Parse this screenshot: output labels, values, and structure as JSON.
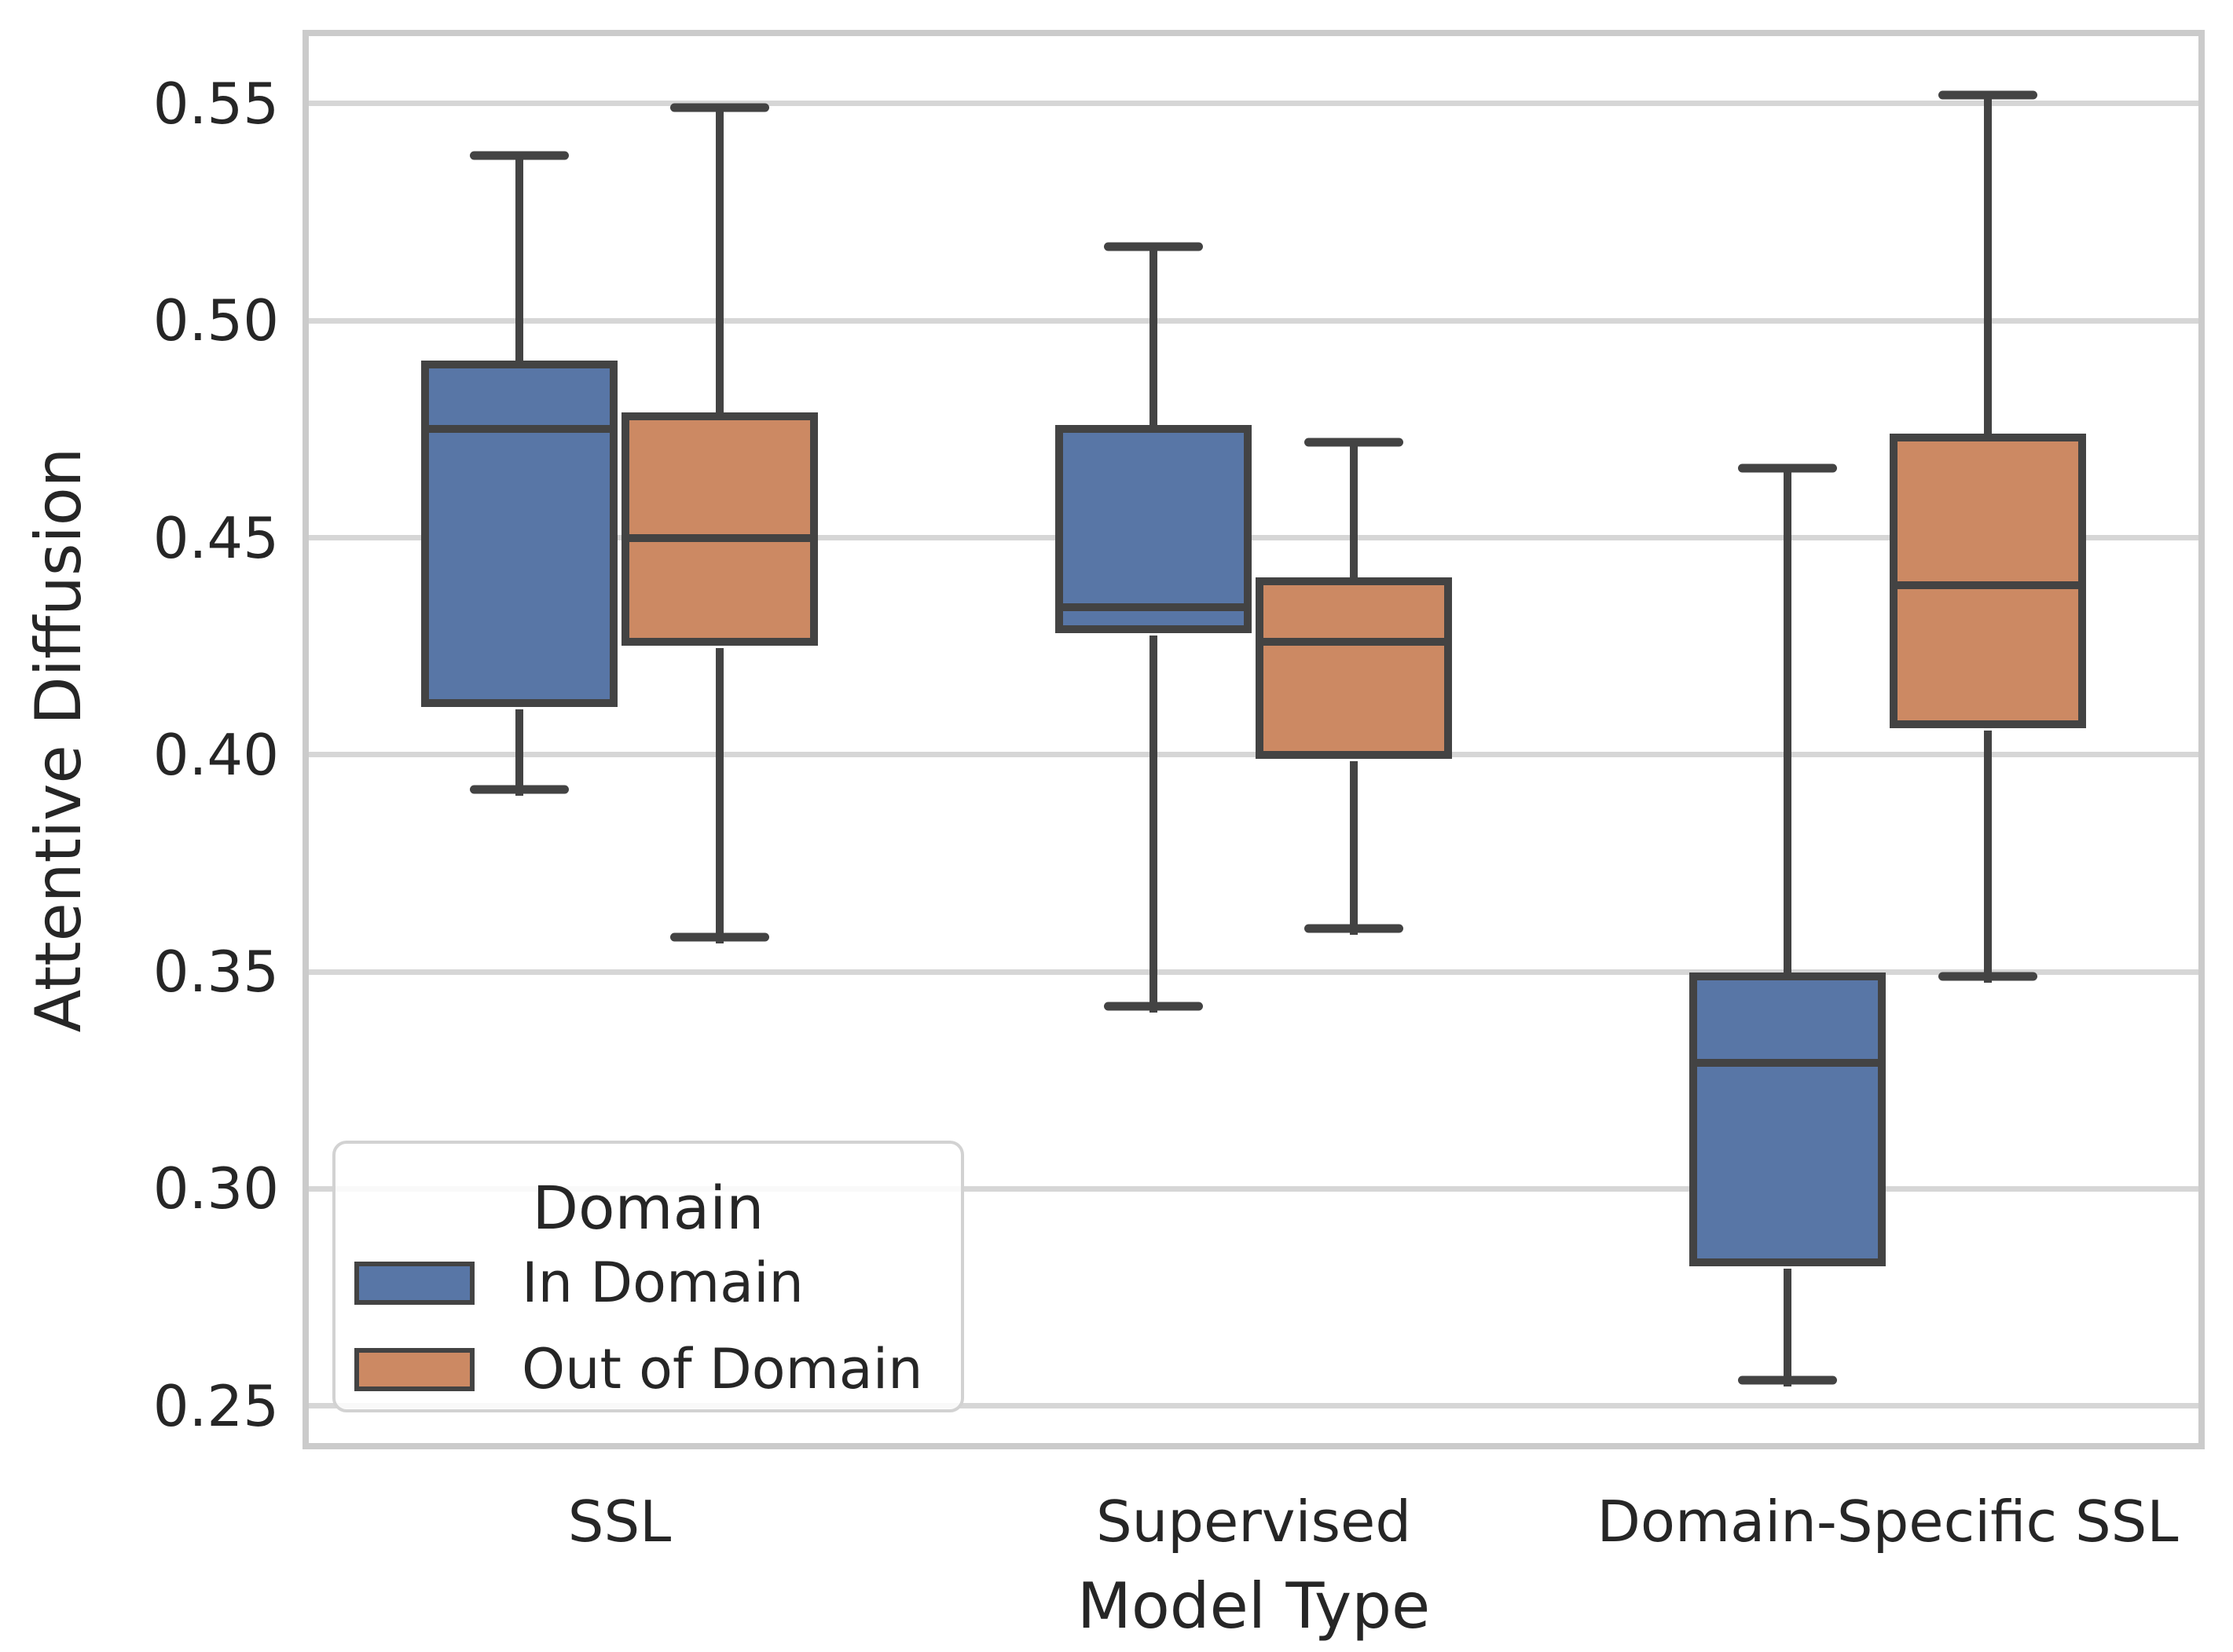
{
  "chart_data": {
    "type": "boxplot",
    "title": "",
    "xlabel": "Model Type",
    "ylabel": "Attentive Diffusion",
    "categories": [
      "SSL",
      "Supervised",
      "Domain-Specific SSL"
    ],
    "ylim": [
      0.24,
      0.567
    ],
    "yticks": [
      0.55,
      0.5,
      0.45,
      0.4,
      0.35,
      0.3,
      0.25
    ],
    "ytick_labels": [
      "0.55",
      "0.50",
      "0.45",
      "0.40",
      "0.35",
      "0.30",
      "0.25"
    ],
    "grid": "horizontal",
    "legend": {
      "title": "Domain",
      "position": "lower left",
      "entries": [
        {
          "label": "In Domain",
          "color": "#5876a6"
        },
        {
          "label": "Out of Domain",
          "color": "#cc8963"
        }
      ]
    },
    "series": [
      {
        "name": "In Domain",
        "color": "#5876a6",
        "boxes": [
          {
            "category": "SSL",
            "whisker_low": 0.392,
            "q1": 0.412,
            "median": 0.475,
            "q3": 0.49,
            "whisker_high": 0.538
          },
          {
            "category": "Supervised",
            "whisker_low": 0.342,
            "q1": 0.429,
            "median": 0.434,
            "q3": 0.475,
            "whisker_high": 0.517
          },
          {
            "category": "Domain-Specific SSL",
            "whisker_low": 0.256,
            "q1": 0.283,
            "median": 0.329,
            "q3": 0.349,
            "whisker_high": 0.466
          }
        ]
      },
      {
        "name": "Out of Domain",
        "color": "#cc8963",
        "boxes": [
          {
            "category": "SSL",
            "whisker_low": 0.358,
            "q1": 0.426,
            "median": 0.45,
            "q3": 0.478,
            "whisker_high": 0.549
          },
          {
            "category": "Supervised",
            "whisker_low": 0.36,
            "q1": 0.4,
            "median": 0.426,
            "q3": 0.44,
            "whisker_high": 0.472
          },
          {
            "category": "Domain-Specific SSL",
            "whisker_low": 0.349,
            "q1": 0.407,
            "median": 0.439,
            "q3": 0.473,
            "whisker_high": 0.552
          }
        ]
      }
    ],
    "colors": {
      "box_edge": "#434343",
      "grid": "#d6d6d6",
      "spine": "#cbcbcb",
      "text": "#262626",
      "background": "#ffffff"
    }
  }
}
